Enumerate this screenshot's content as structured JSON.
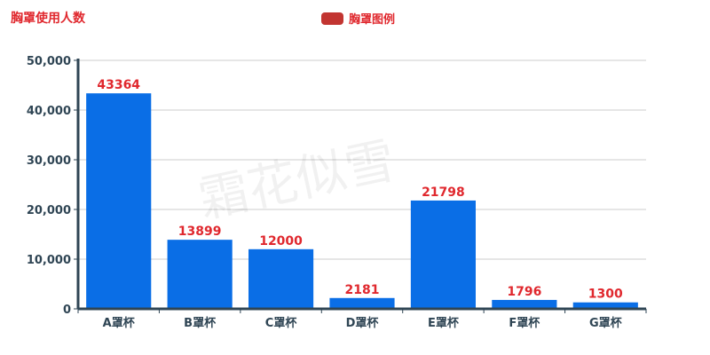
{
  "chart_data": {
    "type": "bar",
    "title": "胸罩使用人数",
    "legend": {
      "name": "胸罩图例",
      "color": "#c23531",
      "placement": "top-center"
    },
    "categories": [
      "A罩杯",
      "B罩杯",
      "C罩杯",
      "D罩杯",
      "E罩杯",
      "F罩杯",
      "G罩杯"
    ],
    "series": [
      {
        "name": "胸罩图例",
        "values": [
          43364,
          13899,
          12000,
          2181,
          21798,
          1796,
          1300
        ]
      }
    ],
    "ylim": [
      0,
      50000
    ],
    "yticks": [
      0,
      10000,
      20000,
      30000,
      40000,
      50000
    ],
    "ytick_labels": [
      "0",
      "10,000",
      "20,000",
      "30,000",
      "40,000",
      "50,000"
    ],
    "grid": true,
    "bar_color": "#0a6ee6",
    "axis_color": "#2f4554",
    "label_color": "#e0282e",
    "watermark": "霜花似雪"
  }
}
